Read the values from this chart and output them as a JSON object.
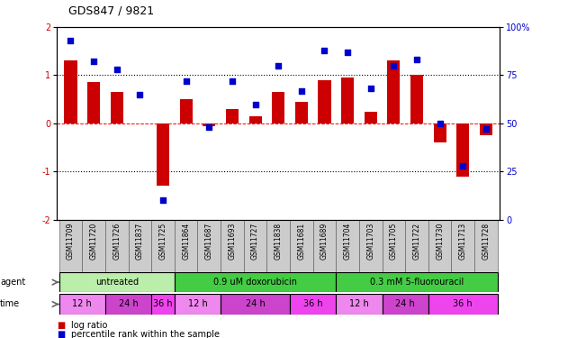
{
  "title": "GDS847 / 9821",
  "samples": [
    "GSM11709",
    "GSM11720",
    "GSM11726",
    "GSM11837",
    "GSM11725",
    "GSM11864",
    "GSM11687",
    "GSM11693",
    "GSM11727",
    "GSM11838",
    "GSM11681",
    "GSM11689",
    "GSM11704",
    "GSM11703",
    "GSM11705",
    "GSM11722",
    "GSM11730",
    "GSM11713",
    "GSM11728"
  ],
  "log_ratio": [
    1.3,
    0.85,
    0.65,
    0.0,
    -1.3,
    0.5,
    -0.05,
    0.3,
    0.15,
    0.65,
    0.45,
    0.9,
    0.95,
    0.25,
    1.3,
    1.0,
    -0.4,
    -1.1,
    -0.25
  ],
  "pct_rank": [
    93,
    82,
    78,
    65,
    10,
    72,
    48,
    72,
    60,
    80,
    67,
    88,
    87,
    68,
    80,
    83,
    50,
    28,
    47
  ],
  "bar_color": "#cc0000",
  "dot_color": "#0000cc",
  "ylim_left": [
    -2,
    2
  ],
  "ylim_right": [
    0,
    100
  ],
  "yticks_left": [
    -2,
    -1,
    0,
    1,
    2
  ],
  "yticks_right": [
    0,
    25,
    50,
    75,
    100
  ],
  "yticklabels_right": [
    "0",
    "25",
    "50",
    "75",
    "100%"
  ],
  "agent_groups": [
    {
      "label": "untreated",
      "start": 0,
      "end": 5,
      "color": "#bbeeaa"
    },
    {
      "label": "0.9 uM doxorubicin",
      "start": 5,
      "end": 12,
      "color": "#44cc44"
    },
    {
      "label": "0.3 mM 5-fluorouracil",
      "start": 12,
      "end": 19,
      "color": "#44cc44"
    }
  ],
  "time_groups": [
    {
      "label": "12 h",
      "start": 0,
      "end": 2,
      "color": "#ee88ee"
    },
    {
      "label": "24 h",
      "start": 2,
      "end": 4,
      "color": "#cc44cc"
    },
    {
      "label": "36 h",
      "start": 4,
      "end": 5,
      "color": "#ee44ee"
    },
    {
      "label": "12 h",
      "start": 5,
      "end": 7,
      "color": "#ee88ee"
    },
    {
      "label": "24 h",
      "start": 7,
      "end": 10,
      "color": "#cc44cc"
    },
    {
      "label": "36 h",
      "start": 10,
      "end": 12,
      "color": "#ee44ee"
    },
    {
      "label": "12 h",
      "start": 12,
      "end": 14,
      "color": "#ee88ee"
    },
    {
      "label": "24 h",
      "start": 14,
      "end": 16,
      "color": "#cc44cc"
    },
    {
      "label": "36 h",
      "start": 16,
      "end": 19,
      "color": "#ee44ee"
    }
  ],
  "legend_items": [
    {
      "label": "log ratio",
      "color": "#cc0000"
    },
    {
      "label": "percentile rank within the sample",
      "color": "#0000cc"
    }
  ]
}
